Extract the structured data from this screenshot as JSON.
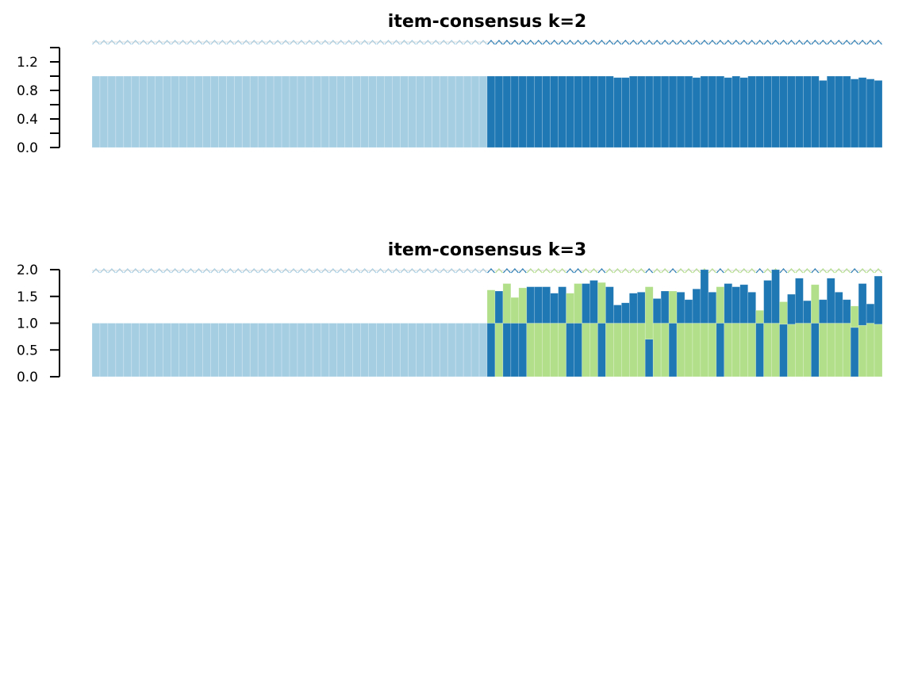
{
  "colors": {
    "cluster1": "#A6CEE3",
    "cluster2": "#1F78B4",
    "cluster3": "#B2DF8A"
  },
  "chart_data": [
    {
      "type": "bar",
      "stacked": true,
      "title": "item-consensus k=2",
      "xlabel": "",
      "ylabel": "",
      "ylim": [
        0,
        1.4
      ],
      "yticks": [
        "0.0",
        "0.4",
        "0.8",
        "1.2"
      ],
      "ytick_values": [
        0.0,
        0.4,
        0.8,
        1.2
      ],
      "minor_ytick_values": [
        0.2,
        0.6,
        1.0,
        1.4
      ],
      "x": [
        1,
        2,
        3,
        4,
        5,
        6,
        7,
        8,
        9,
        10,
        11,
        12,
        13,
        14,
        15,
        16,
        17,
        18,
        19,
        20,
        21,
        22,
        23,
        24,
        25,
        26,
        27,
        28,
        29,
        30,
        31,
        32,
        33,
        34,
        35,
        36,
        37,
        38,
        39,
        40,
        41,
        42,
        43,
        44,
        45,
        46,
        47,
        48,
        49,
        50,
        51,
        52,
        53,
        54,
        55,
        56,
        57,
        58,
        59,
        60,
        61,
        62,
        63,
        64,
        65,
        66,
        67,
        68,
        69,
        70,
        71,
        72,
        73,
        74,
        75,
        76,
        77,
        78,
        79,
        80,
        81,
        82,
        83,
        84,
        85,
        86,
        87,
        88,
        89,
        90,
        91,
        92,
        93,
        94,
        95,
        96,
        97,
        98,
        99,
        100
      ],
      "series": [
        {
          "cluster": "1",
          "values": [
            1,
            1,
            1,
            1,
            1,
            1,
            1,
            1,
            1,
            1,
            1,
            1,
            1,
            1,
            1,
            1,
            1,
            1,
            1,
            1,
            1,
            1,
            1,
            1,
            1,
            1,
            1,
            1,
            1,
            1,
            1,
            1,
            1,
            1,
            1,
            1,
            1,
            1,
            1,
            1,
            1,
            1,
            1,
            1,
            1,
            1,
            1,
            1,
            1,
            1,
            0,
            0,
            0,
            0,
            0,
            0,
            0,
            0,
            0,
            0,
            0,
            0,
            0,
            0,
            0,
            0,
            0,
            0,
            0,
            0,
            0,
            0,
            0,
            0,
            0,
            0,
            0,
            0,
            0,
            0,
            0,
            0,
            0,
            0,
            0,
            0,
            0,
            0,
            0,
            0,
            0,
            0,
            0,
            0,
            0,
            0,
            0,
            0,
            0,
            0
          ]
        },
        {
          "cluster": "2",
          "values": [
            0,
            0,
            0,
            0,
            0,
            0,
            0,
            0,
            0,
            0,
            0,
            0,
            0,
            0,
            0,
            0,
            0,
            0,
            0,
            0,
            0,
            0,
            0,
            0,
            0,
            0,
            0,
            0,
            0,
            0,
            0,
            0,
            0,
            0,
            0,
            0,
            0,
            0,
            0,
            0,
            0,
            0,
            0,
            0,
            0,
            0,
            0,
            0,
            0,
            0,
            1,
            1,
            1,
            1,
            1,
            1,
            1,
            1,
            1,
            1,
            1,
            1,
            1,
            1,
            1,
            1,
            0.98,
            0.98,
            1,
            1,
            1,
            1,
            1,
            1,
            1,
            1,
            0.98,
            1,
            1,
            1,
            0.98,
            1,
            0.98,
            1,
            1,
            1,
            1,
            1,
            1,
            1,
            1,
            1,
            0.94,
            1,
            1,
            1,
            0.96,
            0.98,
            0.96,
            0.94
          ]
        }
      ],
      "class_marks": [
        1,
        1,
        1,
        1,
        1,
        1,
        1,
        1,
        1,
        1,
        1,
        1,
        1,
        1,
        1,
        1,
        1,
        1,
        1,
        1,
        1,
        1,
        1,
        1,
        1,
        1,
        1,
        1,
        1,
        1,
        1,
        1,
        1,
        1,
        1,
        1,
        1,
        1,
        1,
        1,
        1,
        1,
        1,
        1,
        1,
        1,
        1,
        1,
        1,
        1,
        2,
        2,
        2,
        2,
        2,
        2,
        2,
        2,
        2,
        2,
        2,
        2,
        2,
        2,
        2,
        2,
        2,
        2,
        2,
        2,
        2,
        2,
        2,
        2,
        2,
        2,
        2,
        2,
        2,
        2,
        2,
        2,
        2,
        2,
        2,
        2,
        2,
        2,
        2,
        2,
        2,
        2,
        2,
        2,
        2,
        2,
        2,
        2,
        2,
        2
      ]
    },
    {
      "type": "bar",
      "stacked": true,
      "title": "item-consensus k=3",
      "xlabel": "",
      "ylabel": "",
      "ylim": [
        0,
        2.0
      ],
      "yticks": [
        "0.0",
        "0.5",
        "1.0",
        "1.5",
        "2.0"
      ],
      "ytick_values": [
        0.0,
        0.5,
        1.0,
        1.5,
        2.0
      ],
      "minor_ytick_values": [],
      "x": [
        1,
        2,
        3,
        4,
        5,
        6,
        7,
        8,
        9,
        10,
        11,
        12,
        13,
        14,
        15,
        16,
        17,
        18,
        19,
        20,
        21,
        22,
        23,
        24,
        25,
        26,
        27,
        28,
        29,
        30,
        31,
        32,
        33,
        34,
        35,
        36,
        37,
        38,
        39,
        40,
        41,
        42,
        43,
        44,
        45,
        46,
        47,
        48,
        49,
        50,
        51,
        52,
        53,
        54,
        55,
        56,
        57,
        58,
        59,
        60,
        61,
        62,
        63,
        64,
        65,
        66,
        67,
        68,
        69,
        70,
        71,
        72,
        73,
        74,
        75,
        76,
        77,
        78,
        79,
        80,
        81,
        82,
        83,
        84,
        85,
        86,
        87,
        88,
        89,
        90,
        91,
        92,
        93,
        94,
        95,
        96,
        97,
        98,
        99,
        100
      ],
      "bottom_values": [
        1,
        1,
        1,
        1,
        1,
        1,
        1,
        1,
        1,
        1,
        1,
        1,
        1,
        1,
        1,
        1,
        1,
        1,
        1,
        1,
        1,
        1,
        1,
        1,
        1,
        1,
        1,
        1,
        1,
        1,
        1,
        1,
        1,
        1,
        1,
        1,
        1,
        1,
        1,
        1,
        1,
        1,
        1,
        1,
        1,
        1,
        1,
        1,
        1,
        1,
        1,
        1,
        1,
        1,
        1,
        1,
        1,
        1,
        1,
        1,
        1,
        1,
        1,
        1,
        1,
        1,
        1,
        1,
        1,
        1,
        0.7,
        1,
        1,
        1,
        1,
        1,
        1,
        1,
        1,
        1,
        1,
        1,
        1,
        1,
        1,
        1,
        1,
        0.98,
        0.98,
        1,
        1,
        1,
        1,
        1,
        1,
        1,
        0.92,
        0.96,
        1,
        0.98
      ],
      "top_values": [
        0,
        0,
        0,
        0,
        0,
        0,
        0,
        0,
        0,
        0,
        0,
        0,
        0,
        0,
        0,
        0,
        0,
        0,
        0,
        0,
        0,
        0,
        0,
        0,
        0,
        0,
        0,
        0,
        0,
        0,
        0,
        0,
        0,
        0,
        0,
        0,
        0,
        0,
        0,
        0,
        0,
        0,
        0,
        0,
        0,
        0,
        0,
        0,
        0,
        0,
        0.62,
        0.6,
        0.74,
        0.48,
        0.66,
        0.68,
        0.68,
        0.68,
        0.56,
        0.68,
        0.56,
        0.74,
        0.74,
        0.8,
        0.76,
        0.68,
        0.34,
        0.38,
        0.56,
        0.58,
        0.98,
        0.46,
        0.6,
        0.6,
        0.58,
        0.44,
        0.64,
        1,
        0.58,
        0.68,
        0.74,
        0.68,
        0.72,
        0.58,
        0.24,
        0.8,
        1,
        0.42,
        0.56,
        0.84,
        0.42,
        0.72,
        0.44,
        0.84,
        0.58,
        0.44,
        0.4,
        0.78,
        0.36,
        0.9
      ],
      "bottom_clusters": [
        1,
        1,
        1,
        1,
        1,
        1,
        1,
        1,
        1,
        1,
        1,
        1,
        1,
        1,
        1,
        1,
        1,
        1,
        1,
        1,
        1,
        1,
        1,
        1,
        1,
        1,
        1,
        1,
        1,
        1,
        1,
        1,
        1,
        1,
        1,
        1,
        1,
        1,
        1,
        1,
        1,
        1,
        1,
        1,
        1,
        1,
        1,
        1,
        1,
        1,
        2,
        3,
        2,
        2,
        2,
        3,
        3,
        3,
        3,
        3,
        2,
        2,
        3,
        3,
        2,
        3,
        3,
        3,
        3,
        3,
        2,
        3,
        3,
        2,
        3,
        3,
        3,
        3,
        3,
        2,
        3,
        3,
        3,
        3,
        2,
        3,
        3,
        2,
        3,
        3,
        3,
        2,
        3,
        3,
        3,
        3,
        2,
        3,
        3,
        3
      ],
      "top_clusters": [
        0,
        0,
        0,
        0,
        0,
        0,
        0,
        0,
        0,
        0,
        0,
        0,
        0,
        0,
        0,
        0,
        0,
        0,
        0,
        0,
        0,
        0,
        0,
        0,
        0,
        0,
        0,
        0,
        0,
        0,
        0,
        0,
        0,
        0,
        0,
        0,
        0,
        0,
        0,
        0,
        0,
        0,
        0,
        0,
        0,
        0,
        0,
        0,
        0,
        0,
        3,
        2,
        3,
        3,
        3,
        2,
        2,
        2,
        2,
        2,
        3,
        3,
        2,
        2,
        3,
        2,
        2,
        2,
        2,
        2,
        3,
        2,
        2,
        3,
        2,
        2,
        2,
        2,
        2,
        3,
        2,
        2,
        2,
        2,
        3,
        2,
        2,
        3,
        2,
        2,
        2,
        3,
        2,
        2,
        2,
        2,
        3,
        2,
        2,
        2
      ],
      "class_marks": [
        1,
        1,
        1,
        1,
        1,
        1,
        1,
        1,
        1,
        1,
        1,
        1,
        1,
        1,
        1,
        1,
        1,
        1,
        1,
        1,
        1,
        1,
        1,
        1,
        1,
        1,
        1,
        1,
        1,
        1,
        1,
        1,
        1,
        1,
        1,
        1,
        1,
        1,
        1,
        1,
        1,
        1,
        1,
        1,
        1,
        1,
        1,
        1,
        1,
        1,
        2,
        3,
        2,
        2,
        2,
        3,
        3,
        3,
        3,
        3,
        2,
        2,
        3,
        3,
        2,
        3,
        3,
        3,
        3,
        3,
        2,
        3,
        3,
        2,
        3,
        3,
        3,
        3,
        3,
        2,
        3,
        3,
        3,
        3,
        2,
        3,
        3,
        2,
        3,
        3,
        3,
        2,
        3,
        3,
        3,
        3,
        2,
        3,
        3,
        3
      ]
    }
  ]
}
